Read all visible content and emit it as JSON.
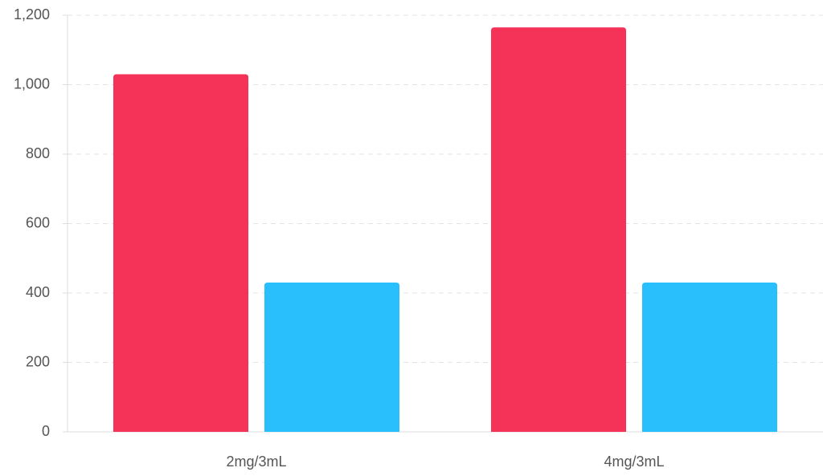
{
  "chart_data": {
    "type": "bar",
    "categories": [
      "2mg/3mL",
      "4mg/3mL"
    ],
    "series": [
      {
        "color": "#f53359",
        "values": [
          1030,
          1165
        ]
      },
      {
        "color": "#29bffd",
        "values": [
          430,
          430
        ]
      }
    ],
    "ylim": [
      0,
      1200
    ],
    "yticks": [
      0,
      200,
      400,
      600,
      800,
      {
        "value": 1000,
        "label": "1,000"
      },
      {
        "value": 1200,
        "label": "1,200"
      }
    ],
    "grid": true
  }
}
